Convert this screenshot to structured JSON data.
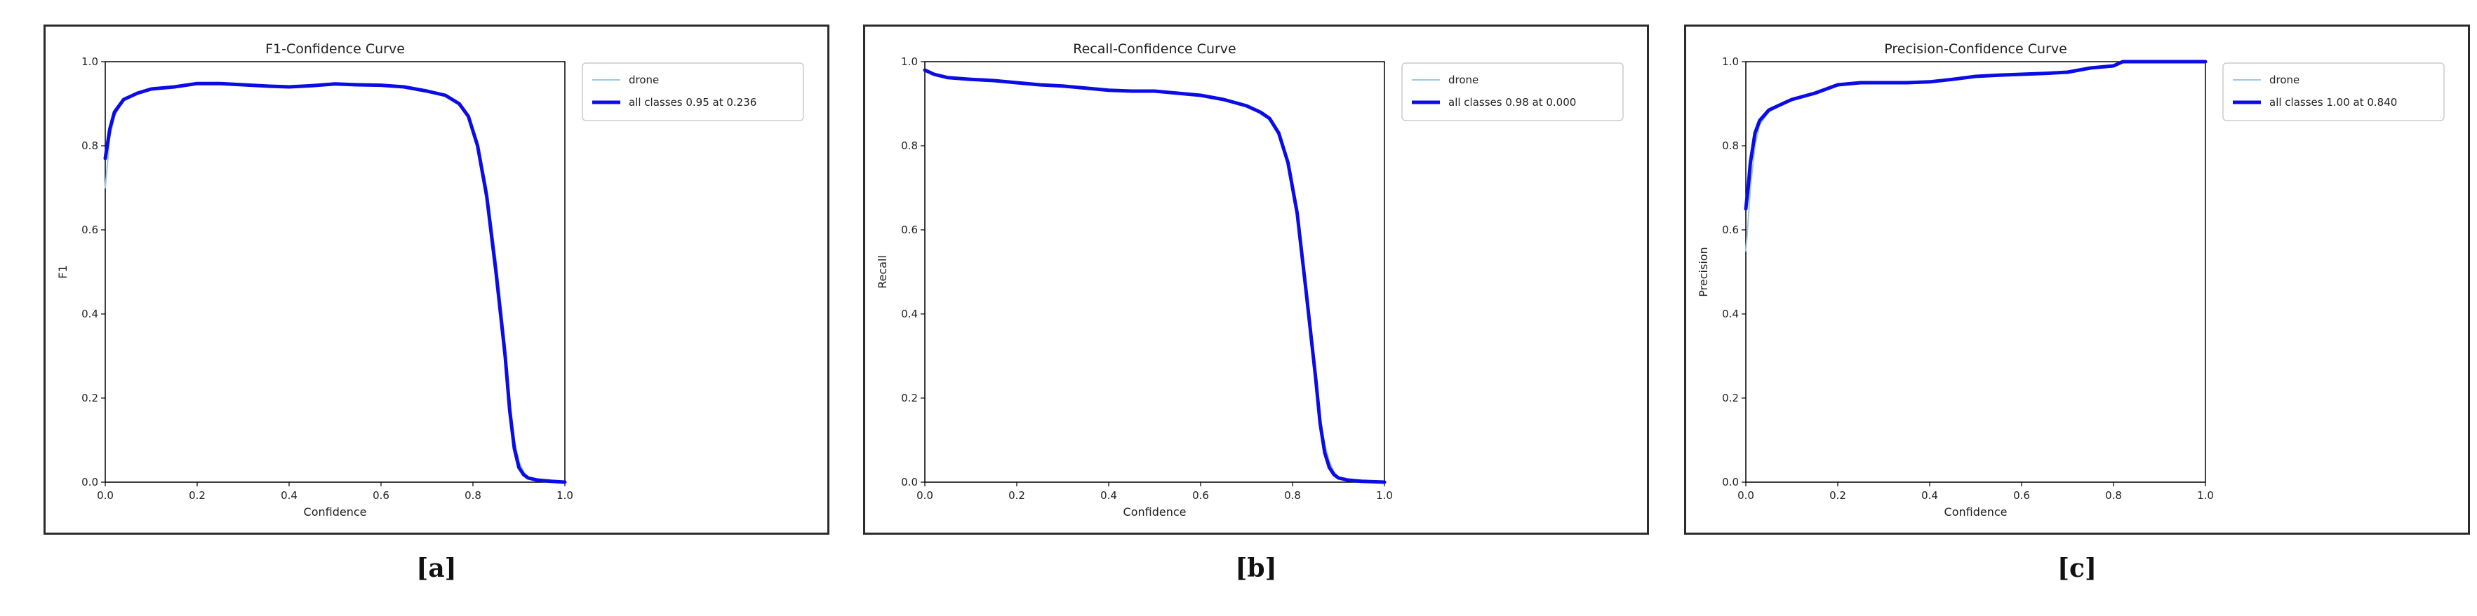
{
  "colors": {
    "thin": "#9ec7e8",
    "bold": "#0b0be6",
    "axis": "#000000"
  },
  "captions": [
    "[a]",
    "[b]",
    "[c]"
  ],
  "chart_data": [
    {
      "type": "line",
      "title": "F1-Confidence Curve",
      "xlabel": "Confidence",
      "ylabel": "F1",
      "xlim": [
        0,
        1
      ],
      "ylim": [
        0,
        1
      ],
      "xticks": [
        "0.0",
        "0.2",
        "0.4",
        "0.6",
        "0.8",
        "1.0"
      ],
      "yticks": [
        "0.0",
        "0.2",
        "0.4",
        "0.6",
        "0.8",
        "1.0"
      ],
      "legend_position": "upper-right-outside",
      "series": [
        {
          "name": "drone",
          "style": "thin",
          "x": [
            0,
            0.01,
            0.02,
            0.04,
            0.07,
            0.1,
            0.15,
            0.2,
            0.25,
            0.3,
            0.35,
            0.4,
            0.45,
            0.5,
            0.55,
            0.6,
            0.65,
            0.7,
            0.74,
            0.77,
            0.79,
            0.81,
            0.83,
            0.85,
            0.87,
            0.88,
            0.89,
            0.9,
            0.91,
            0.92,
            0.94,
            0.97,
            1.0
          ],
          "y": [
            0.7,
            0.82,
            0.87,
            0.91,
            0.925,
            0.935,
            0.94,
            0.948,
            0.948,
            0.945,
            0.942,
            0.94,
            0.943,
            0.947,
            0.945,
            0.944,
            0.94,
            0.93,
            0.92,
            0.9,
            0.87,
            0.81,
            0.7,
            0.53,
            0.33,
            0.2,
            0.1,
            0.05,
            0.025,
            0.012,
            0.005,
            0.002,
            0.0
          ]
        },
        {
          "name": "all classes 0.95 at 0.236",
          "style": "bold",
          "x": [
            0,
            0.01,
            0.02,
            0.04,
            0.07,
            0.1,
            0.15,
            0.2,
            0.25,
            0.3,
            0.35,
            0.4,
            0.45,
            0.5,
            0.55,
            0.6,
            0.65,
            0.7,
            0.74,
            0.77,
            0.79,
            0.81,
            0.83,
            0.85,
            0.87,
            0.88,
            0.89,
            0.9,
            0.91,
            0.92,
            0.94,
            0.97,
            1.0
          ],
          "y": [
            0.77,
            0.84,
            0.88,
            0.91,
            0.925,
            0.935,
            0.94,
            0.948,
            0.948,
            0.945,
            0.942,
            0.94,
            0.943,
            0.947,
            0.945,
            0.944,
            0.94,
            0.93,
            0.92,
            0.9,
            0.87,
            0.8,
            0.68,
            0.5,
            0.3,
            0.17,
            0.08,
            0.035,
            0.018,
            0.01,
            0.005,
            0.002,
            0.0
          ]
        }
      ]
    },
    {
      "type": "line",
      "title": "Recall-Confidence Curve",
      "xlabel": "Confidence",
      "ylabel": "Recall",
      "xlim": [
        0,
        1
      ],
      "ylim": [
        0,
        1
      ],
      "xticks": [
        "0.0",
        "0.2",
        "0.4",
        "0.6",
        "0.8",
        "1.0"
      ],
      "yticks": [
        "0.0",
        "0.2",
        "0.4",
        "0.6",
        "0.8",
        "1.0"
      ],
      "legend_position": "upper-right-outside",
      "series": [
        {
          "name": "drone",
          "style": "thin",
          "x": [
            0,
            0.02,
            0.05,
            0.1,
            0.15,
            0.2,
            0.25,
            0.3,
            0.35,
            0.4,
            0.45,
            0.5,
            0.55,
            0.6,
            0.65,
            0.7,
            0.73,
            0.75,
            0.77,
            0.79,
            0.81,
            0.83,
            0.85,
            0.86,
            0.87,
            0.88,
            0.89,
            0.9,
            0.92,
            0.95,
            1.0
          ],
          "y": [
            0.98,
            0.97,
            0.962,
            0.958,
            0.955,
            0.95,
            0.945,
            0.942,
            0.937,
            0.932,
            0.93,
            0.93,
            0.925,
            0.92,
            0.91,
            0.895,
            0.88,
            0.865,
            0.83,
            0.76,
            0.64,
            0.45,
            0.25,
            0.15,
            0.09,
            0.05,
            0.025,
            0.012,
            0.005,
            0.002,
            0.0
          ]
        },
        {
          "name": "all classes 0.98 at 0.000",
          "style": "bold",
          "x": [
            0,
            0.02,
            0.05,
            0.1,
            0.15,
            0.2,
            0.25,
            0.3,
            0.35,
            0.4,
            0.45,
            0.5,
            0.55,
            0.6,
            0.65,
            0.7,
            0.73,
            0.75,
            0.77,
            0.79,
            0.81,
            0.83,
            0.85,
            0.86,
            0.87,
            0.88,
            0.89,
            0.9,
            0.92,
            0.95,
            1.0
          ],
          "y": [
            0.98,
            0.97,
            0.962,
            0.958,
            0.955,
            0.95,
            0.945,
            0.942,
            0.937,
            0.932,
            0.93,
            0.93,
            0.925,
            0.92,
            0.91,
            0.895,
            0.88,
            0.865,
            0.83,
            0.76,
            0.64,
            0.45,
            0.25,
            0.14,
            0.07,
            0.035,
            0.018,
            0.01,
            0.005,
            0.002,
            0.0
          ]
        }
      ]
    },
    {
      "type": "line",
      "title": "Precision-Confidence Curve",
      "xlabel": "Confidence",
      "ylabel": "Precision",
      "xlim": [
        0,
        1
      ],
      "ylim": [
        0,
        1
      ],
      "xticks": [
        "0.0",
        "0.2",
        "0.4",
        "0.6",
        "0.8",
        "1.0"
      ],
      "yticks": [
        "0.0",
        "0.2",
        "0.4",
        "0.6",
        "0.8",
        "1.0"
      ],
      "legend_position": "upper-right-outside",
      "series": [
        {
          "name": "drone",
          "style": "thin",
          "x": [
            0,
            0.005,
            0.01,
            0.02,
            0.03,
            0.05,
            0.08,
            0.1,
            0.15,
            0.2,
            0.25,
            0.3,
            0.35,
            0.4,
            0.45,
            0.5,
            0.55,
            0.6,
            0.65,
            0.7,
            0.75,
            0.8,
            0.82,
            0.85,
            0.9,
            1.0
          ],
          "y": [
            0.55,
            0.62,
            0.7,
            0.8,
            0.85,
            0.88,
            0.9,
            0.91,
            0.925,
            0.945,
            0.95,
            0.95,
            0.95,
            0.952,
            0.958,
            0.965,
            0.968,
            0.97,
            0.972,
            0.975,
            0.985,
            0.99,
            1.0,
            1.0,
            1.0,
            1.0
          ]
        },
        {
          "name": "all classes 1.00 at 0.840",
          "style": "bold",
          "x": [
            0,
            0.005,
            0.01,
            0.02,
            0.03,
            0.05,
            0.08,
            0.1,
            0.15,
            0.2,
            0.25,
            0.3,
            0.35,
            0.4,
            0.45,
            0.5,
            0.55,
            0.6,
            0.65,
            0.7,
            0.75,
            0.8,
            0.82,
            0.85,
            0.9,
            1.0
          ],
          "y": [
            0.65,
            0.7,
            0.76,
            0.83,
            0.86,
            0.885,
            0.9,
            0.91,
            0.925,
            0.945,
            0.95,
            0.95,
            0.95,
            0.952,
            0.958,
            0.965,
            0.968,
            0.97,
            0.972,
            0.975,
            0.985,
            0.99,
            1.0,
            1.0,
            1.0,
            1.0
          ]
        }
      ]
    }
  ]
}
